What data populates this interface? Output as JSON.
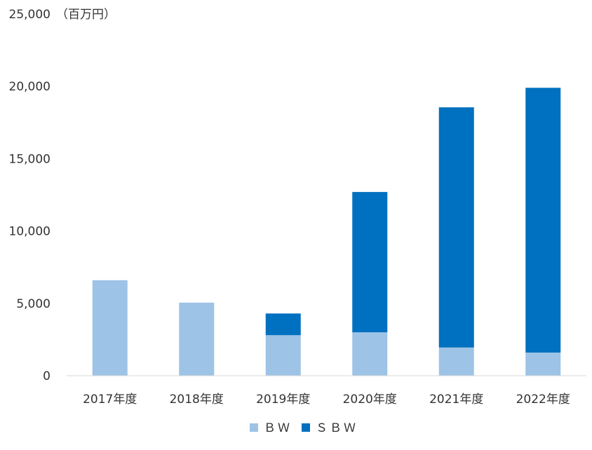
{
  "chart_data": {
    "type": "bar",
    "stacked": true,
    "unit_label": "（百万円）",
    "categories": [
      "2017年度",
      "2018年度",
      "2019年度",
      "2020年度",
      "2021年度",
      "2022年度"
    ],
    "series": [
      {
        "name": "ＢＷ",
        "color": "#9dc3e6",
        "values": [
          6600,
          5050,
          2800,
          3000,
          1950,
          1600
        ]
      },
      {
        "name": "ＳＢＷ",
        "color": "#0070c0",
        "values": [
          0,
          0,
          1500,
          9700,
          16600,
          18300
        ]
      }
    ],
    "ylim": [
      0,
      25000
    ],
    "yticks": [
      0,
      5000,
      10000,
      15000,
      20000,
      25000
    ],
    "ytick_labels": [
      "0",
      "5,000",
      "10,000",
      "15,000",
      "20,000",
      "25,000"
    ],
    "grid": false,
    "legend_position": "bottom"
  }
}
